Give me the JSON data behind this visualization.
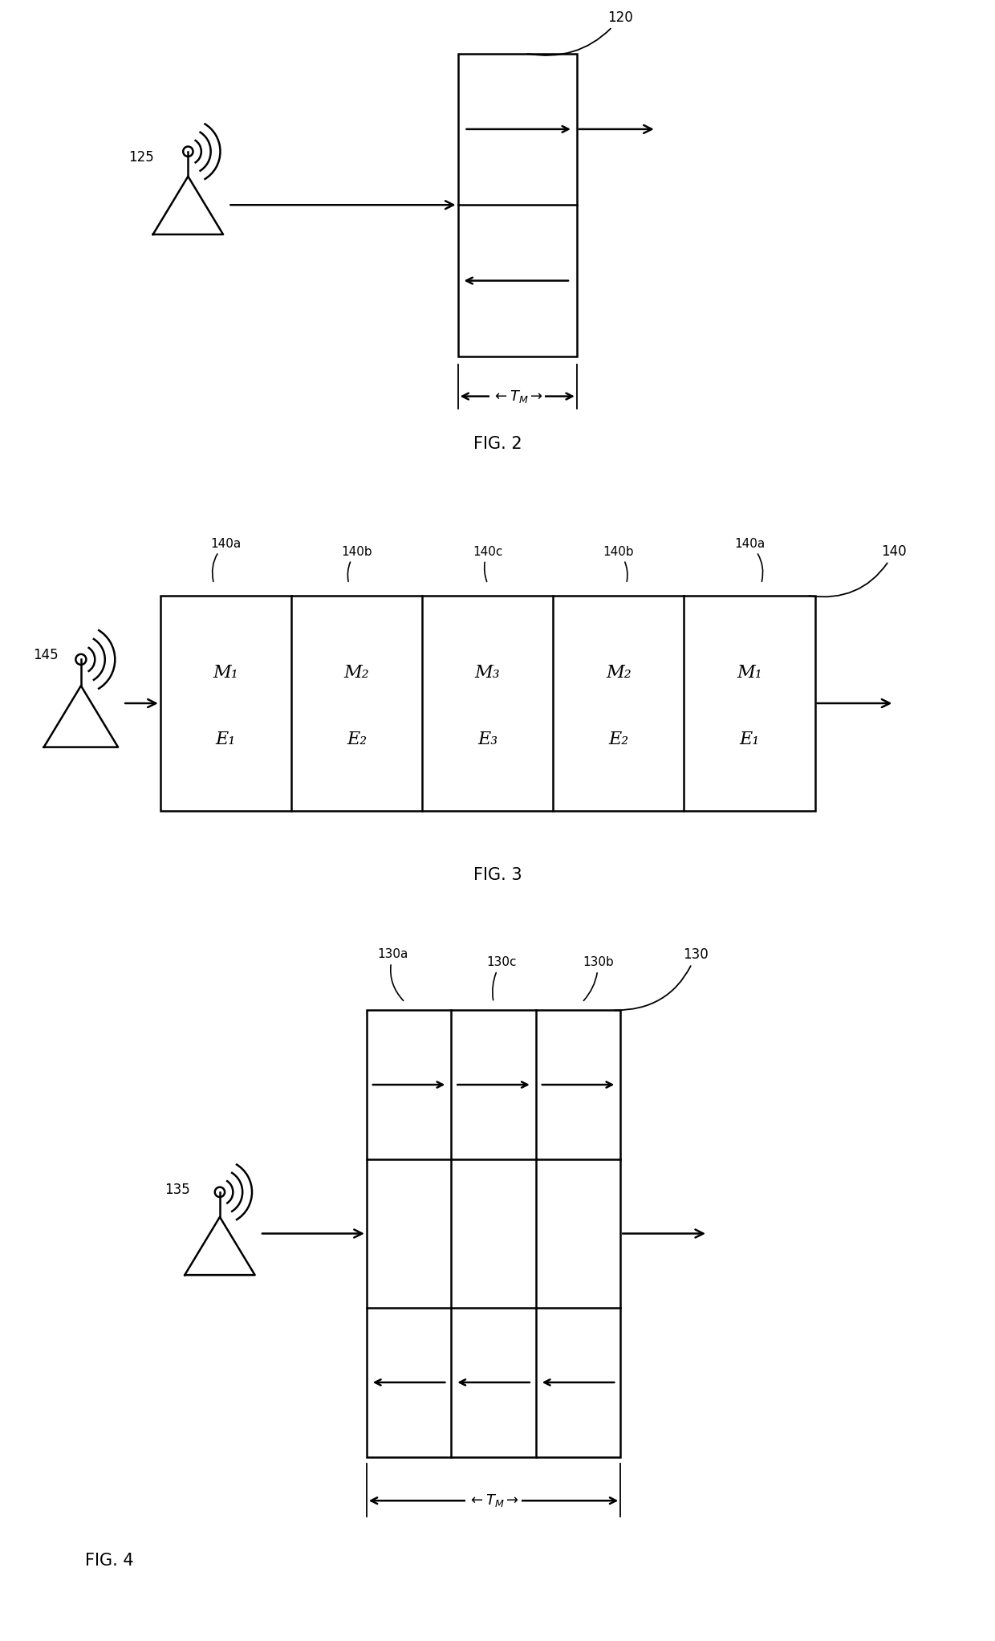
{
  "bg_color": "#ffffff",
  "line_color": "#000000",
  "fig2": {
    "label": "120",
    "fig_label": "FIG. 2",
    "antenna_label": "125"
  },
  "fig3": {
    "label": "140",
    "fig_label": "FIG. 3",
    "antenna_label": "145",
    "col_labels_top": [
      "140a",
      "140b",
      "140c",
      "140b",
      "140a"
    ],
    "cell_m_labels": [
      "M₁",
      "M₂",
      "M₃",
      "M₂",
      "M₁"
    ],
    "cell_e_labels": [
      "E₁",
      "E₂",
      "E₃",
      "E₂",
      "E₁"
    ]
  },
  "fig4": {
    "label": "130",
    "fig_label": "FIG. 4",
    "antenna_label": "135",
    "col_labels_top": [
      "130a",
      "130c",
      "130b"
    ]
  }
}
